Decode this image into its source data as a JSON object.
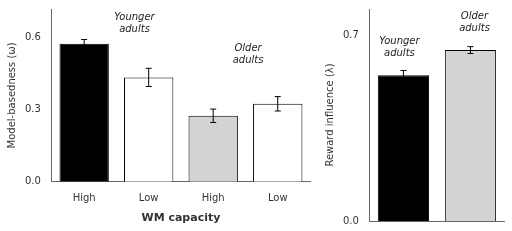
{
  "chart_data": [
    {
      "type": "bar",
      "categories": [
        "High",
        "Low",
        "High",
        "Low"
      ],
      "values": [
        0.575,
        0.435,
        0.275,
        0.325
      ],
      "errors": [
        0.018,
        0.038,
        0.028,
        0.03
      ],
      "colors": [
        "black",
        "white",
        "lightgray",
        "white"
      ],
      "x_label": "WM capacity",
      "y_label": "Model-basedness (ω)",
      "ylim": [
        0,
        0.72
      ],
      "yticks": [
        {
          "value": 0,
          "label": "0.0"
        },
        0.3,
        0.6
      ],
      "annotations": [
        "Younger\nadults",
        "Older\nadults"
      ],
      "grid": false
    },
    {
      "type": "bar",
      "categories": [
        null,
        null
      ],
      "values": [
        0.55,
        0.645
      ],
      "errors": [
        0.018,
        0.013
      ],
      "colors": [
        "black",
        "lightgray"
      ],
      "y_label": "Reward influence (λ)",
      "ylim": [
        0,
        0.8
      ],
      "yticks": [
        {
          "value": 0,
          "label": "0.0"
        },
        0.7
      ],
      "annotations": [
        "Younger\nadults",
        "Older\nadults"
      ],
      "grid": false,
      "tick_labels": "y"
    }
  ]
}
